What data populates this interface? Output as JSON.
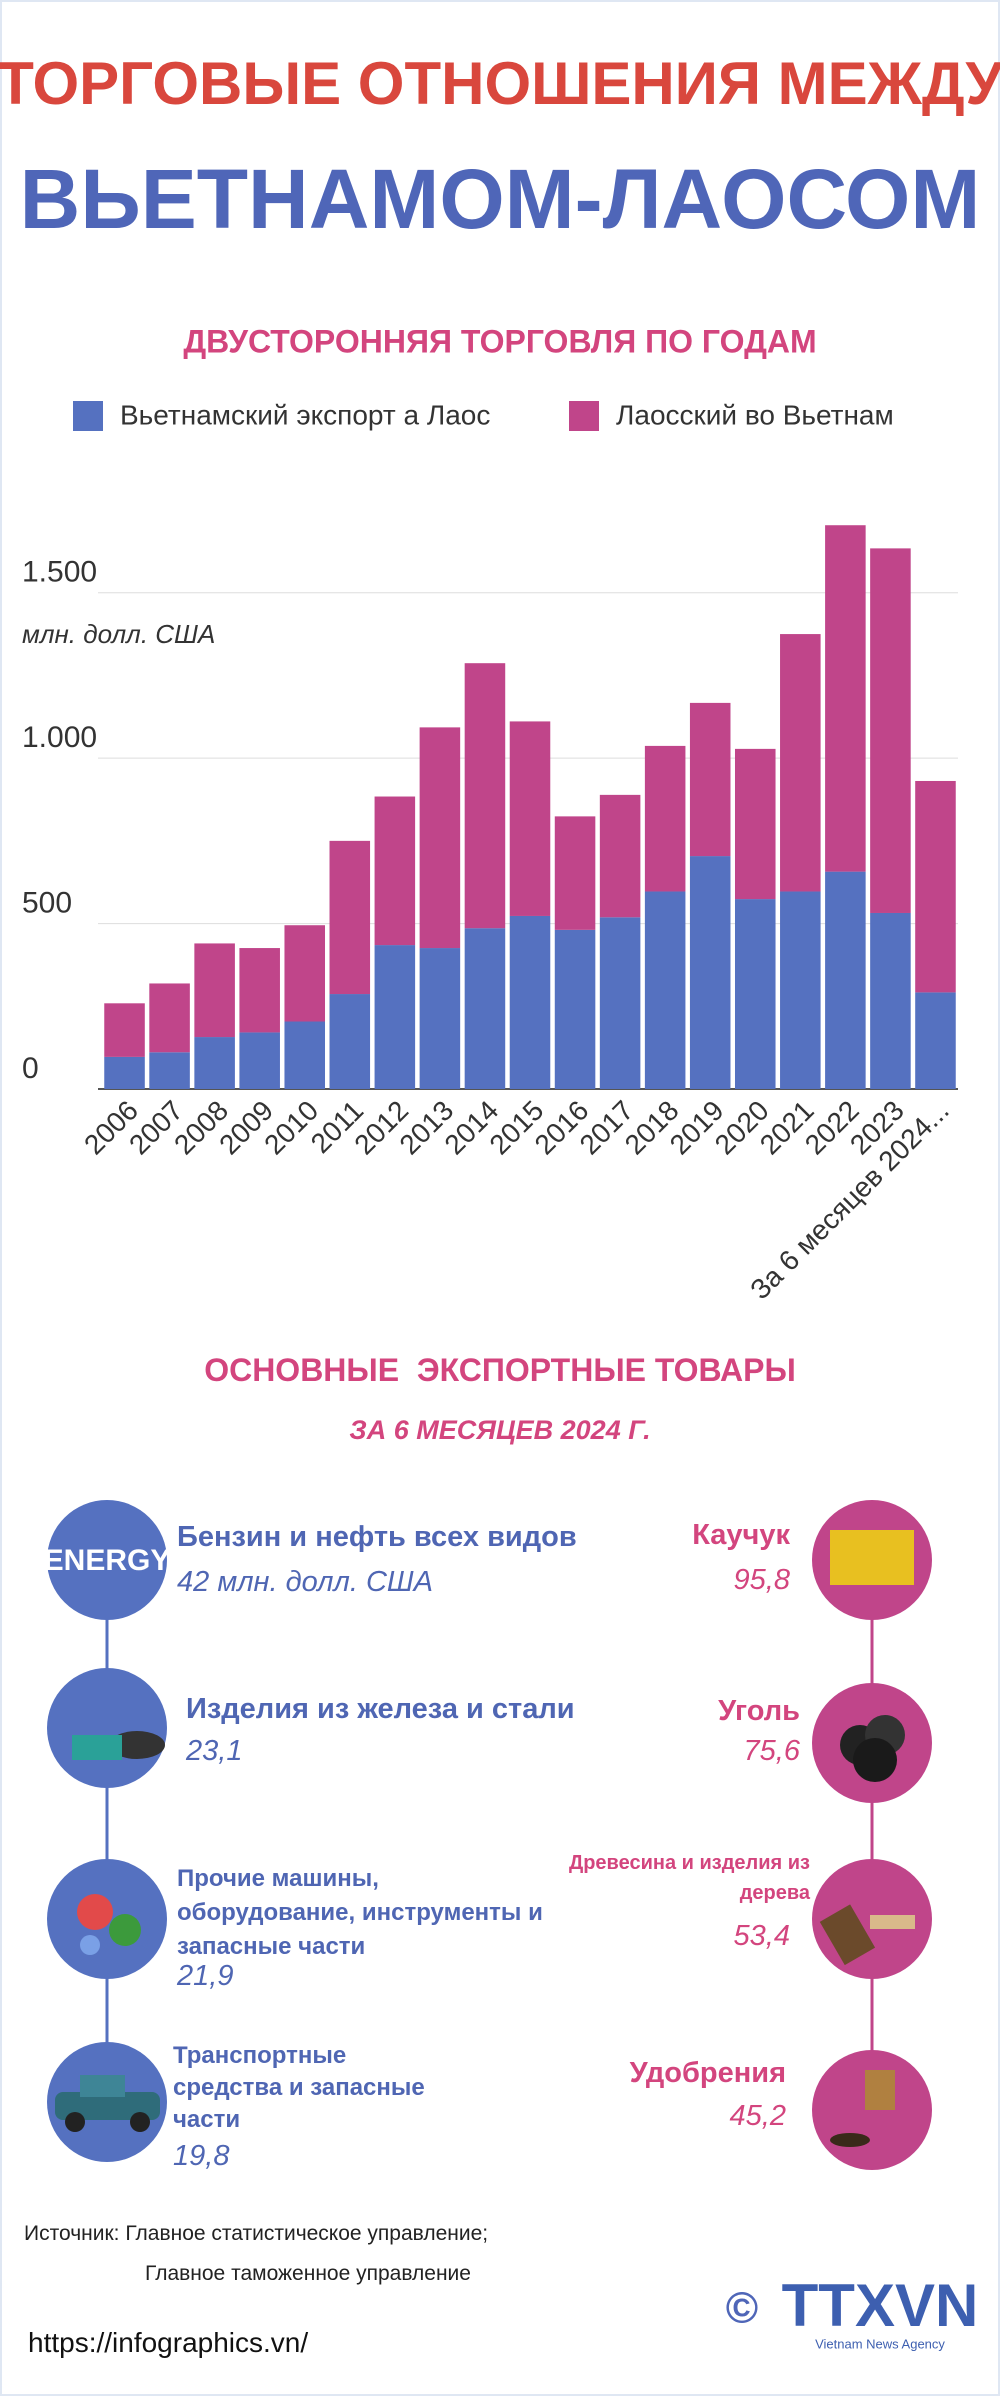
{
  "header": {
    "title_line1": "ТОРГОВЫЕ ОТНОШЕНИЯ МЕЖДУ",
    "title_line2": "ВЬЕТНАМОМ-ЛАОСОМ"
  },
  "chart_data": {
    "type": "stacked_bar",
    "title": "ДВУСТОРОННЯЯ ТОРГОВЛЯ ПО ГОДАМ",
    "y_label": "млн. долл. США",
    "categories": [
      "2006",
      "2007",
      "2008",
      "2009",
      "2010",
      "2011",
      "2012",
      "2013",
      "2014",
      "2015",
      "2016",
      "2017",
      "2018",
      "2019",
      "2020",
      "2021",
      "2022",
      "2023",
      "За 6 месяцев 2024..."
    ],
    "series": [
      {
        "name": "Вьетнамский экспорт а Лаос",
        "color": "#5571c0",
        "values": [
          97,
          111,
          157,
          171,
          204,
          287,
          435,
          426,
          486,
          523,
          481,
          519,
          597,
          704,
          574,
          597,
          657,
          532,
          292
        ]
      },
      {
        "name": "Лаосский во Вьетнам",
        "color": "#c0458a",
        "values": [
          162,
          208,
          283,
          255,
          291,
          463,
          449,
          667,
          801,
          588,
          343,
          370,
          440,
          463,
          454,
          778,
          1047,
          1102,
          639
        ]
      }
    ],
    "ylim": [
      0,
      1750
    ],
    "yticks": [
      0,
      500,
      {
        "value": 1000,
        "label": "1.000"
      },
      {
        "value": 1500,
        "label": "1.500"
      }
    ],
    "grid": true
  },
  "products": {
    "title": "ОСНОВНЫЕ  ЭКСПОРТНЫЕ ТОВАРЫ",
    "subtitle": "ЗА 6 МЕСЯЦЕВ 2024 Г.",
    "vietnam_exports": [
      {
        "name": "Бензин и нефть всех видов",
        "value": "42 млн. долл. США"
      },
      {
        "name": "Изделия из железа и стали",
        "value": "23,1"
      },
      {
        "name": "Прочие машины, оборудование, инструменты и запасные части",
        "value": "21,9"
      },
      {
        "name": "Транспортные средства и запасные части",
        "value": "19,8"
      }
    ],
    "laos_exports": [
      {
        "name": "Каучук",
        "value": "95,8"
      },
      {
        "name": "Уголь",
        "value": "75,6"
      },
      {
        "name": "Древесина и изделия из дерева",
        "value": "53,4"
      },
      {
        "name": "Удобрения",
        "value": "45,2"
      }
    ]
  },
  "footer": {
    "source_line1": "Источник: Главное  статистическое управление;",
    "source_line2": "Главное таможенное управление",
    "url": "https://infographics.vn/",
    "logo": "TTXVN",
    "copyright": "©",
    "agency": "Vietnam News Agency"
  }
}
